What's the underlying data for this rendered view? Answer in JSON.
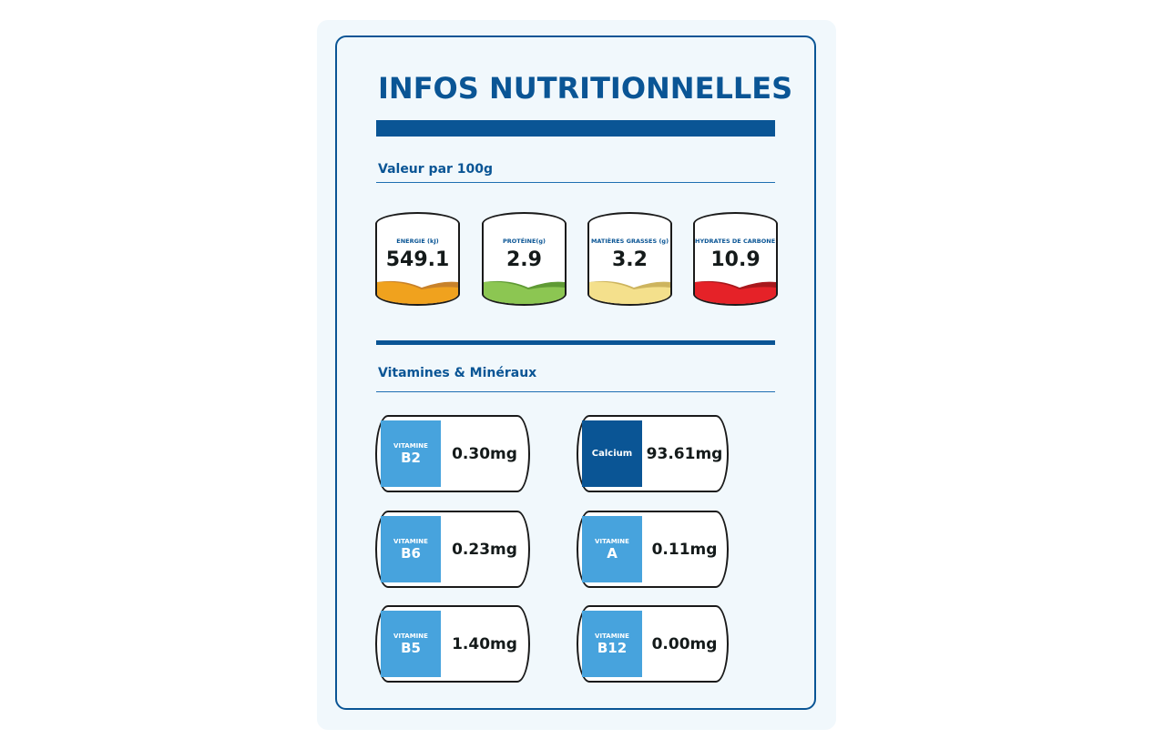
{
  "title": "INFOS NUTRITIONNELLES",
  "section_values": "Valeur par 100g",
  "section_vitamins": "Vitamines & Minéraux",
  "colors": {
    "brand": "#0a5595",
    "vitamin_tab": "#47a3dd",
    "mineral_tab": "#0a5595"
  },
  "nutrients": [
    {
      "label": "ENERGIE (kJ)",
      "value": "549.1",
      "color": "#f0a21e",
      "shade": "#c8822a"
    },
    {
      "label": "PROTÉINE(g)",
      "value": "2.9",
      "color": "#8cc652",
      "shade": "#5f9a34"
    },
    {
      "label": "MATIÈRES GRASSES (g)",
      "value": "3.2",
      "color": "#f4e08c",
      "shade": "#cdb45e"
    },
    {
      "label": "HYDRATES DE CARBONE (g)",
      "value": "10.9",
      "color": "#e52228",
      "shade": "#a8181c"
    }
  ],
  "vitamins": [
    {
      "prefix": "VITAMINE",
      "name": "B2",
      "amount": "0.30mg",
      "type": "vitamin"
    },
    {
      "prefix": "",
      "name": "Calcium",
      "amount": "93.61mg",
      "type": "mineral"
    },
    {
      "prefix": "VITAMINE",
      "name": "B6",
      "amount": "0.23mg",
      "type": "vitamin"
    },
    {
      "prefix": "VITAMINE",
      "name": "A",
      "amount": "0.11mg",
      "type": "vitamin"
    },
    {
      "prefix": "VITAMINE",
      "name": "B5",
      "amount": "1.40mg",
      "type": "vitamin"
    },
    {
      "prefix": "VITAMINE",
      "name": "B12",
      "amount": "0.00mg",
      "type": "vitamin"
    }
  ]
}
